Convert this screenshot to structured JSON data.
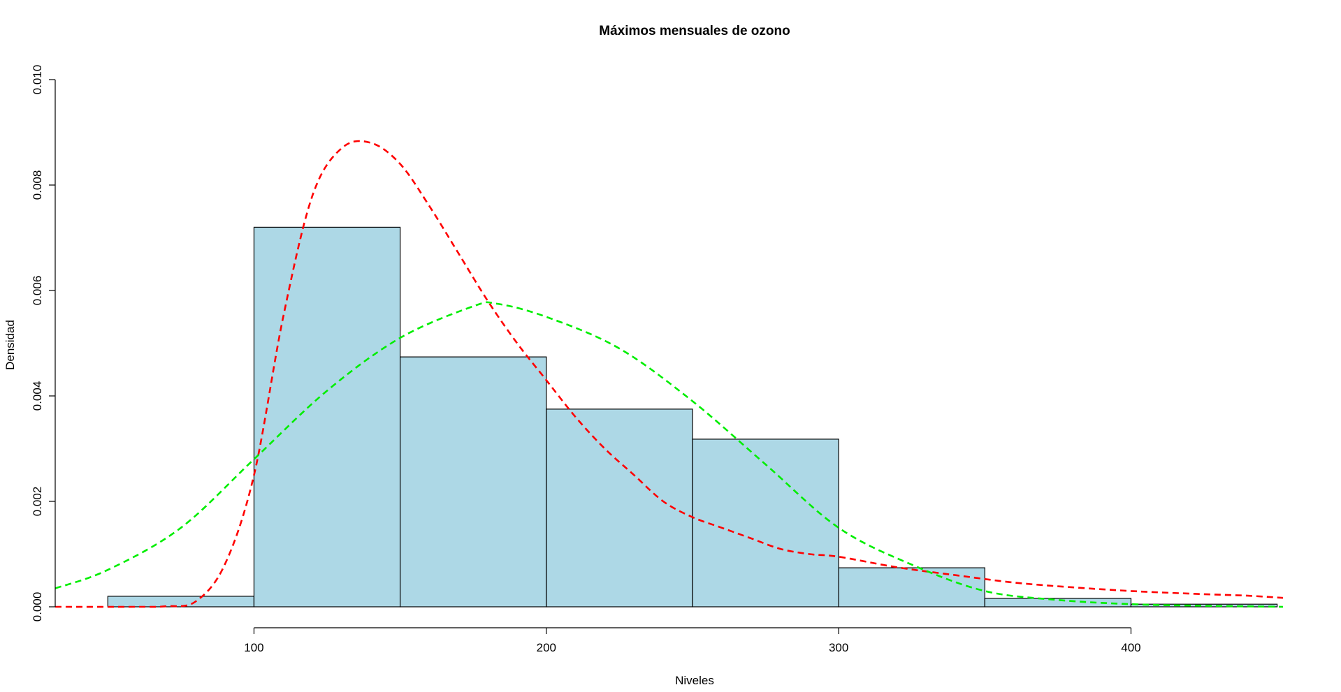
{
  "chart_data": {
    "type": "bar",
    "title": "Máximos mensuales de ozono",
    "xlabel": "Niveles",
    "ylabel": "Densidad",
    "xlim": [
      32,
      452
    ],
    "ylim": [
      0,
      0.01
    ],
    "x_ticks": [
      "100",
      "200",
      "300",
      "400"
    ],
    "y_ticks": [
      "0.000",
      "0.002",
      "0.004",
      "0.006",
      "0.008",
      "0.010"
    ],
    "histogram": {
      "fill": "#add8e6",
      "edge": "#000000",
      "bins": [
        {
          "start": 50,
          "end": 100,
          "density": 0.0002
        },
        {
          "start": 100,
          "end": 150,
          "density": 0.0072
        },
        {
          "start": 150,
          "end": 200,
          "density": 0.00474
        },
        {
          "start": 200,
          "end": 250,
          "density": 0.00375
        },
        {
          "start": 250,
          "end": 300,
          "density": 0.00318
        },
        {
          "start": 300,
          "end": 350,
          "density": 0.00074
        },
        {
          "start": 350,
          "end": 400,
          "density": 0.00016
        },
        {
          "start": 400,
          "end": 450,
          "density": 5e-05
        }
      ]
    },
    "curves": [
      {
        "color": "#ff0000",
        "style": "dashed",
        "x": [
          32,
          60,
          70,
          80,
          90,
          100,
          110,
          120,
          130,
          140,
          150,
          160,
          170,
          180,
          190,
          200,
          210,
          220,
          230,
          240,
          250,
          260,
          270,
          280,
          290,
          300,
          320,
          340,
          360,
          380,
          400,
          420,
          440,
          452
        ],
        "y": [
          0,
          0,
          1e-05,
          0.0001,
          0.0008,
          0.0025,
          0.0055,
          0.0078,
          0.0087,
          0.0088,
          0.0084,
          0.0076,
          0.0067,
          0.0058,
          0.005,
          0.0043,
          0.0036,
          0.003,
          0.0025,
          0.002,
          0.0017,
          0.0015,
          0.0013,
          0.0011,
          0.001,
          0.00095,
          0.00075,
          0.0006,
          0.00046,
          0.00037,
          0.0003,
          0.00025,
          0.00021,
          0.00017
        ]
      },
      {
        "color": "#00ee00",
        "style": "dashed",
        "x": [
          32,
          50,
          75,
          100,
          125,
          150,
          175,
          183,
          200,
          225,
          250,
          275,
          300,
          325,
          350,
          375,
          400,
          425,
          452
        ],
        "y": [
          0.00035,
          0.0007,
          0.0015,
          0.0028,
          0.0041,
          0.0051,
          0.0057,
          0.00575,
          0.0055,
          0.0049,
          0.0039,
          0.0027,
          0.0015,
          0.0008,
          0.0003,
          0.00013,
          5e-05,
          2e-05,
          0
        ]
      }
    ]
  }
}
